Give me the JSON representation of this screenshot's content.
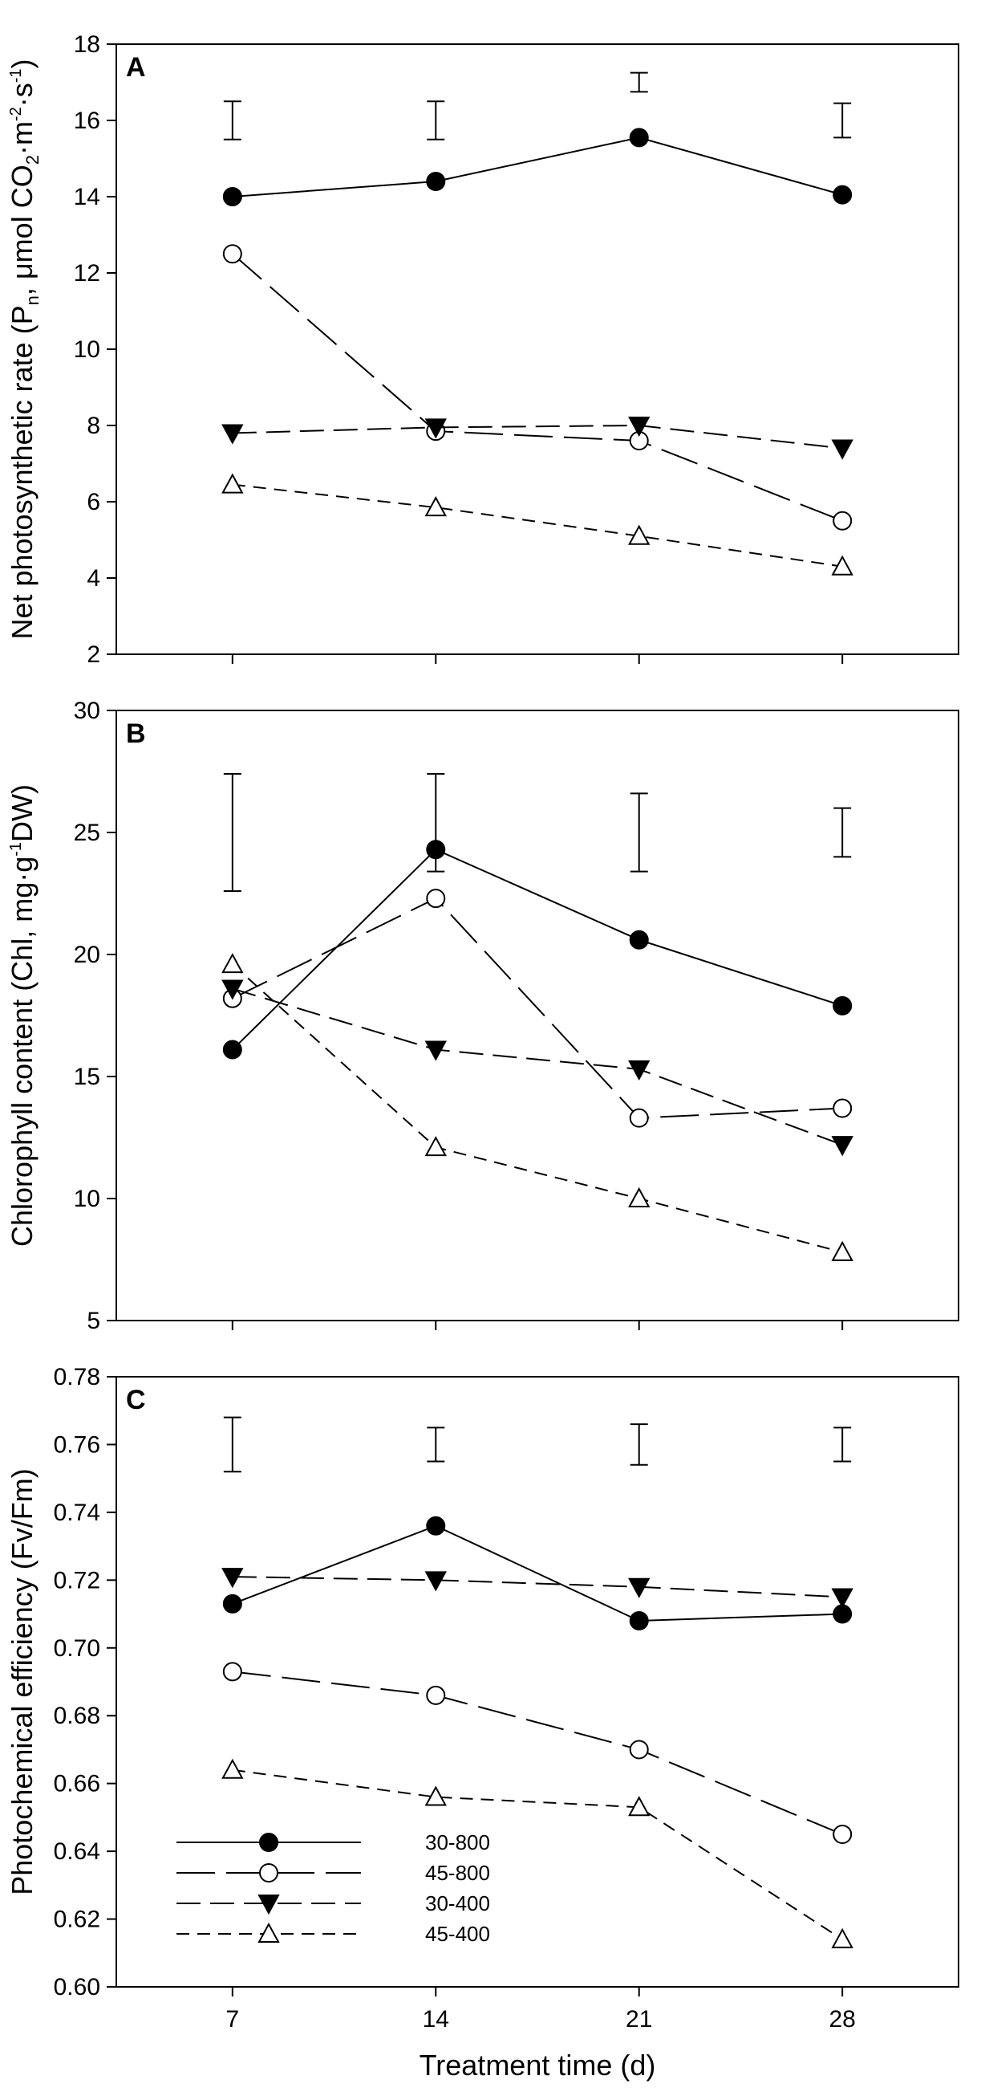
{
  "chart_data": [
    {
      "type": "line",
      "panel": "A",
      "ylabel_parts": [
        "Net photosynthetic rate (P",
        "n",
        ", μmol CO",
        "2",
        "·m",
        "-2",
        "·s",
        "-1",
        ")"
      ],
      "ylim": [
        2,
        18
      ],
      "yticks": [
        2,
        4,
        6,
        8,
        10,
        12,
        14,
        16,
        18
      ],
      "ytick_labels": [
        "2",
        "4",
        "6",
        "8",
        "10",
        "12",
        "14",
        "16",
        "18"
      ],
      "x": [
        7,
        14,
        21,
        28
      ],
      "series": [
        {
          "name": "30-800",
          "values": [
            14.0,
            14.4,
            15.55,
            14.05
          ]
        },
        {
          "name": "45-800",
          "values": [
            12.5,
            7.85,
            7.6,
            5.5
          ]
        },
        {
          "name": "30-400",
          "values": [
            7.8,
            7.95,
            8.0,
            7.4
          ]
        },
        {
          "name": "45-400",
          "values": [
            6.45,
            5.85,
            5.1,
            4.3
          ]
        }
      ],
      "error_bars": [
        {
          "x": 7,
          "low": 15.5,
          "high": 16.5
        },
        {
          "x": 14,
          "low": 15.5,
          "high": 16.5
        },
        {
          "x": 21,
          "low": 16.75,
          "high": 17.25
        },
        {
          "x": 28,
          "low": 15.55,
          "high": 16.45
        }
      ]
    },
    {
      "type": "line",
      "panel": "B",
      "ylabel_parts": [
        "Chlorophyll content (Chl, mg·g",
        "-1",
        "DW)"
      ],
      "ylim": [
        5,
        30
      ],
      "yticks": [
        5,
        10,
        15,
        20,
        25,
        30
      ],
      "ytick_labels": [
        "5",
        "10",
        "15",
        "20",
        "25",
        "30"
      ],
      "x": [
        7,
        14,
        21,
        28
      ],
      "series": [
        {
          "name": "30-800",
          "values": [
            16.1,
            24.3,
            20.6,
            17.9
          ]
        },
        {
          "name": "45-800",
          "values": [
            18.2,
            22.3,
            13.3,
            13.7
          ]
        },
        {
          "name": "30-400",
          "values": [
            18.6,
            16.1,
            15.3,
            12.2
          ]
        },
        {
          "name": "45-400",
          "values": [
            19.6,
            12.1,
            10.0,
            7.8
          ]
        }
      ],
      "error_bars": [
        {
          "x": 7,
          "low": 22.6,
          "high": 27.4
        },
        {
          "x": 14,
          "low": 23.4,
          "high": 27.4
        },
        {
          "x": 21,
          "low": 23.4,
          "high": 26.6
        },
        {
          "x": 28,
          "low": 24.0,
          "high": 26.0
        }
      ]
    },
    {
      "type": "line",
      "panel": "C",
      "ylabel_parts": [
        "Photochemical efficiency (Fv/Fm)"
      ],
      "ylim": [
        0.6,
        0.78
      ],
      "yticks": [
        0.6,
        0.62,
        0.64,
        0.66,
        0.68,
        0.7,
        0.72,
        0.74,
        0.76,
        0.78
      ],
      "ytick_labels": [
        "0.60",
        "0.62",
        "0.64",
        "0.66",
        "0.68",
        "0.70",
        "0.72",
        "0.74",
        "0.76",
        "0.78"
      ],
      "x": [
        7,
        14,
        21,
        28
      ],
      "xtick_labels": [
        "7",
        "14",
        "21",
        "28"
      ],
      "xlabel": "Treatment time (d)",
      "series": [
        {
          "name": "30-800",
          "values": [
            0.713,
            0.736,
            0.708,
            0.71
          ]
        },
        {
          "name": "45-800",
          "values": [
            0.693,
            0.686,
            0.67,
            0.645
          ]
        },
        {
          "name": "30-400",
          "values": [
            0.721,
            0.72,
            0.718,
            0.715
          ]
        },
        {
          "name": "45-400",
          "values": [
            0.664,
            0.656,
            0.653,
            0.614
          ]
        }
      ],
      "error_bars": [
        {
          "x": 7,
          "low": 0.752,
          "high": 0.768
        },
        {
          "x": 14,
          "low": 0.755,
          "high": 0.765
        },
        {
          "x": 21,
          "low": 0.754,
          "high": 0.766
        },
        {
          "x": 28,
          "low": 0.755,
          "high": 0.765
        }
      ],
      "legend": {
        "placement": "bottom-left",
        "entries": [
          "30-800",
          "45-800",
          "30-400",
          "45-400"
        ]
      }
    }
  ],
  "series_styles": {
    "30-800": {
      "marker": "filled-circle",
      "line": "solid"
    },
    "45-800": {
      "marker": "open-circle",
      "line": "long-dash"
    },
    "30-400": {
      "marker": "filled-triangle-down",
      "line": "medium-dash"
    },
    "45-400": {
      "marker": "open-triangle-up",
      "line": "short-dash"
    }
  },
  "colors": {
    "ink": "#000000",
    "background": "#ffffff"
  }
}
